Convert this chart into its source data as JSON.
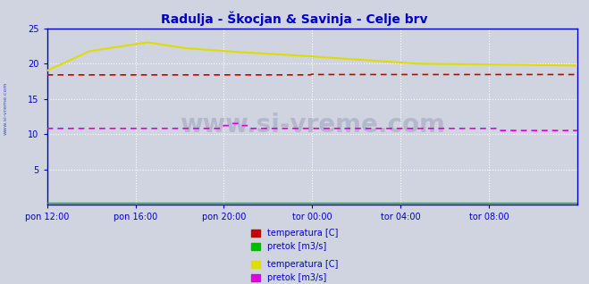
{
  "title": "Radulja - Škocjan & Savinja - Celje brv",
  "title_color": "#0000cc",
  "bg_color": "#d0d4e0",
  "plot_bg_color": "#d0d4e0",
  "grid_color": "#ffffff",
  "axis_color": "#0000cc",
  "tick_label_color": "#0000cc",
  "watermark_text": "www.si-vreme.com",
  "watermark_color": "#b0b4c8",
  "xlim": [
    0,
    288
  ],
  "ylim": [
    0,
    25
  ],
  "yticks": [
    5,
    10,
    15,
    20,
    25
  ],
  "xtick_labels": [
    "pon 12:00",
    "pon 16:00",
    "pon 20:00",
    "tor 00:00",
    "tor 04:00",
    "tor 08:00"
  ],
  "xtick_positions": [
    0,
    48,
    96,
    144,
    192,
    240
  ],
  "legend_items_1": [
    {
      "label": "temperatura [C]",
      "color": "#cc0000"
    },
    {
      "label": "pretok [m3/s]",
      "color": "#00bb00"
    }
  ],
  "legend_items_2": [
    {
      "label": "temperatura [C]",
      "color": "#dddd00"
    },
    {
      "label": "pretok [m3/s]",
      "color": "#dd00dd"
    }
  ]
}
